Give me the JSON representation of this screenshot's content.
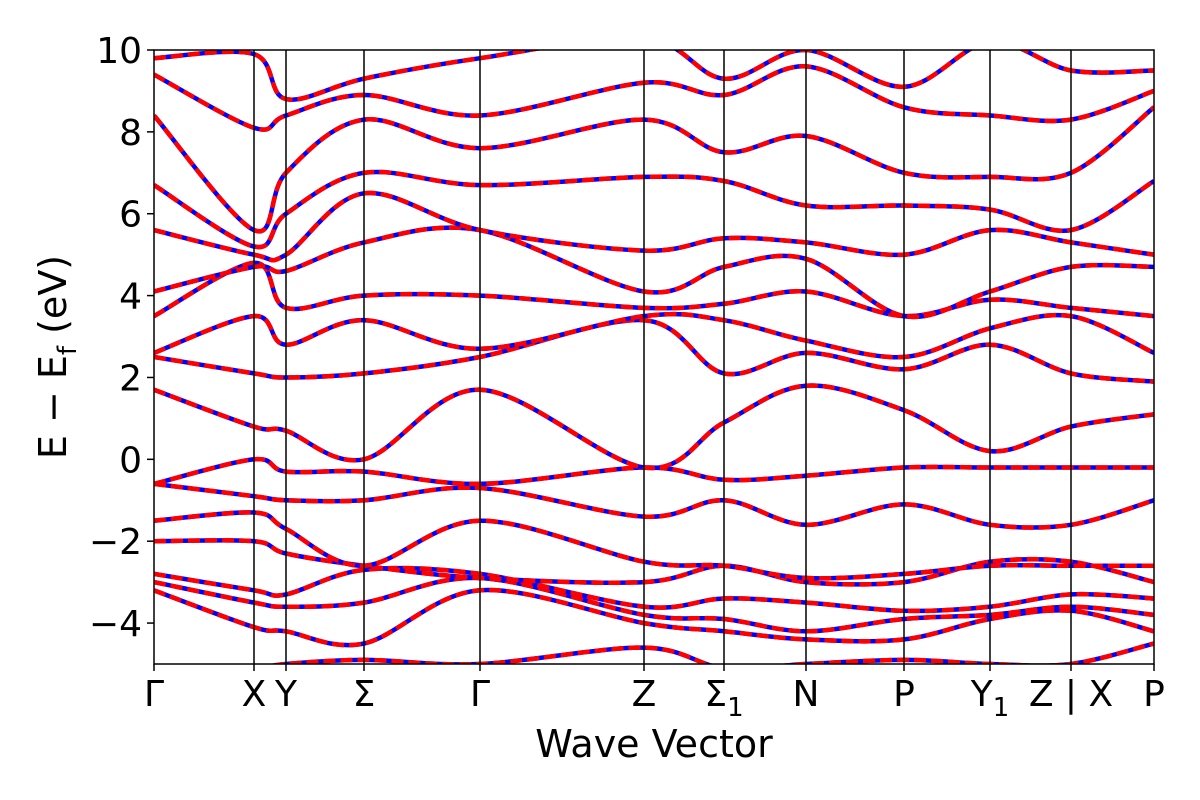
{
  "chart_data": {
    "type": "line",
    "title": "",
    "xlabel": "Wave Vector",
    "ylabel": "E − E_f (eV)",
    "ylabel_parts": {
      "main": "E − E",
      "sub": "f",
      "tail": " (eV)"
    },
    "ylim": [
      -5,
      10
    ],
    "xlim": [
      0,
      1
    ],
    "yticks": [
      -4,
      -2,
      0,
      2,
      4,
      6,
      8,
      10
    ],
    "ytick_labels": [
      "−4",
      "−2",
      "0",
      "2",
      "4",
      "6",
      "8",
      "10"
    ],
    "grid": false,
    "legend": "none",
    "kpoints": [
      {
        "x": 0.0,
        "label": "Γ"
      },
      {
        "x": 0.1,
        "label": "X"
      },
      {
        "x": 0.132,
        "label": "Y"
      },
      {
        "x": 0.21,
        "label": "Σ"
      },
      {
        "x": 0.326,
        "label": "Γ"
      },
      {
        "x": 0.49,
        "label": "Z"
      },
      {
        "x": 0.57,
        "label": "Σ",
        "sub": "1"
      },
      {
        "x": 0.652,
        "label": "N"
      },
      {
        "x": 0.75,
        "label": "P"
      },
      {
        "x": 0.836,
        "label": "Y",
        "sub": "1"
      },
      {
        "x": 0.917,
        "label": "Z | X"
      },
      {
        "x": 1.0,
        "label": "P"
      }
    ],
    "colors": {
      "series_a": "#0000ff",
      "series_b": "#ff0000"
    },
    "series": [
      {
        "style": "dashed-overlay",
        "bands": [
          [
            [
              0,
              -5.2
            ],
            [
              0.1,
              -5.1
            ],
            [
              0.132,
              -5.0
            ],
            [
              0.21,
              -4.9
            ],
            [
              0.326,
              -5.0
            ],
            [
              0.49,
              -4.6
            ],
            [
              0.57,
              -5.1
            ],
            [
              0.652,
              -5.0
            ],
            [
              0.75,
              -4.9
            ],
            [
              0.836,
              -5.0
            ],
            [
              0.917,
              -5.0
            ],
            [
              1.0,
              -4.5
            ]
          ],
          [
            [
              0,
              -3.2
            ],
            [
              0.1,
              -4.1
            ],
            [
              0.132,
              -4.2
            ],
            [
              0.21,
              -4.5
            ],
            [
              0.326,
              -3.2
            ],
            [
              0.49,
              -4.0
            ],
            [
              0.57,
              -4.2
            ],
            [
              0.652,
              -4.4
            ],
            [
              0.75,
              -4.4
            ],
            [
              0.836,
              -3.9
            ],
            [
              0.917,
              -3.7
            ],
            [
              1.0,
              -4.2
            ]
          ],
          [
            [
              0,
              -3.0
            ],
            [
              0.1,
              -3.5
            ],
            [
              0.132,
              -3.6
            ],
            [
              0.21,
              -3.5
            ],
            [
              0.326,
              -2.9
            ],
            [
              0.49,
              -3.8
            ],
            [
              0.57,
              -3.9
            ],
            [
              0.652,
              -4.2
            ],
            [
              0.75,
              -3.9
            ],
            [
              0.836,
              -3.8
            ],
            [
              0.917,
              -3.6
            ],
            [
              1.0,
              -3.8
            ]
          ],
          [
            [
              0,
              -2.8
            ],
            [
              0.1,
              -3.2
            ],
            [
              0.132,
              -3.3
            ],
            [
              0.21,
              -2.7
            ],
            [
              0.326,
              -2.8
            ],
            [
              0.49,
              -3.6
            ],
            [
              0.57,
              -3.4
            ],
            [
              0.652,
              -3.5
            ],
            [
              0.75,
              -3.7
            ],
            [
              0.836,
              -3.6
            ],
            [
              0.917,
              -3.3
            ],
            [
              1.0,
              -3.4
            ]
          ],
          [
            [
              0,
              -2.0
            ],
            [
              0.1,
              -2.0
            ],
            [
              0.132,
              -2.3
            ],
            [
              0.21,
              -2.6
            ],
            [
              0.326,
              -2.9
            ],
            [
              0.49,
              -3.0
            ],
            [
              0.57,
              -2.6
            ],
            [
              0.652,
              -3.0
            ],
            [
              0.75,
              -3.0
            ],
            [
              0.836,
              -2.5
            ],
            [
              0.917,
              -2.5
            ],
            [
              1.0,
              -3.0
            ]
          ],
          [
            [
              0,
              -1.5
            ],
            [
              0.1,
              -1.3
            ],
            [
              0.132,
              -1.7
            ],
            [
              0.21,
              -2.6
            ],
            [
              0.326,
              -1.5
            ],
            [
              0.49,
              -2.5
            ],
            [
              0.57,
              -2.6
            ],
            [
              0.652,
              -2.9
            ],
            [
              0.75,
              -2.8
            ],
            [
              0.836,
              -2.6
            ],
            [
              0.917,
              -2.6
            ],
            [
              1.0,
              -2.6
            ]
          ],
          [
            [
              0,
              -0.6
            ],
            [
              0.1,
              -0.9
            ],
            [
              0.132,
              -1.0
            ],
            [
              0.21,
              -1.0
            ],
            [
              0.326,
              -0.7
            ],
            [
              0.49,
              -1.4
            ],
            [
              0.57,
              -1.0
            ],
            [
              0.652,
              -1.6
            ],
            [
              0.75,
              -1.1
            ],
            [
              0.836,
              -1.6
            ],
            [
              0.917,
              -1.6
            ],
            [
              1.0,
              -1.0
            ]
          ],
          [
            [
              0,
              -0.6
            ],
            [
              0.1,
              0.0
            ],
            [
              0.132,
              -0.3
            ],
            [
              0.21,
              -0.3
            ],
            [
              0.326,
              -0.6
            ],
            [
              0.49,
              -0.2
            ],
            [
              0.57,
              -0.5
            ],
            [
              0.652,
              -0.4
            ],
            [
              0.75,
              -0.2
            ],
            [
              0.836,
              -0.2
            ],
            [
              0.917,
              -0.2
            ],
            [
              1.0,
              -0.2
            ]
          ],
          [
            [
              0,
              1.7
            ],
            [
              0.1,
              0.8
            ],
            [
              0.132,
              0.7
            ],
            [
              0.21,
              0.0
            ],
            [
              0.326,
              1.7
            ],
            [
              0.49,
              -0.2
            ],
            [
              0.57,
              0.9
            ],
            [
              0.652,
              1.8
            ],
            [
              0.75,
              1.2
            ],
            [
              0.836,
              0.2
            ],
            [
              0.917,
              0.8
            ],
            [
              1.0,
              1.1
            ]
          ],
          [
            [
              0,
              2.5
            ],
            [
              0.1,
              2.1
            ],
            [
              0.132,
              2.0
            ],
            [
              0.21,
              2.1
            ],
            [
              0.326,
              2.5
            ],
            [
              0.49,
              3.4
            ],
            [
              0.57,
              2.1
            ],
            [
              0.652,
              2.6
            ],
            [
              0.75,
              2.2
            ],
            [
              0.836,
              2.8
            ],
            [
              0.917,
              2.1
            ],
            [
              1.0,
              1.9
            ]
          ],
          [
            [
              0,
              2.6
            ],
            [
              0.1,
              3.5
            ],
            [
              0.132,
              2.8
            ],
            [
              0.21,
              3.4
            ],
            [
              0.326,
              2.7
            ],
            [
              0.49,
              3.5
            ],
            [
              0.57,
              3.4
            ],
            [
              0.652,
              2.9
            ],
            [
              0.75,
              2.5
            ],
            [
              0.836,
              3.2
            ],
            [
              0.917,
              3.5
            ],
            [
              1.0,
              2.6
            ]
          ],
          [
            [
              0,
              3.5
            ],
            [
              0.1,
              4.8
            ],
            [
              0.132,
              3.7
            ],
            [
              0.21,
              4.0
            ],
            [
              0.326,
              4.0
            ],
            [
              0.49,
              3.7
            ],
            [
              0.57,
              3.8
            ],
            [
              0.652,
              4.1
            ],
            [
              0.75,
              3.5
            ],
            [
              0.836,
              3.9
            ],
            [
              0.917,
              3.7
            ],
            [
              1.0,
              3.5
            ]
          ],
          [
            [
              0,
              4.1
            ],
            [
              0.1,
              4.7
            ],
            [
              0.132,
              4.6
            ],
            [
              0.21,
              5.3
            ],
            [
              0.326,
              5.6
            ],
            [
              0.49,
              4.1
            ],
            [
              0.57,
              4.7
            ],
            [
              0.652,
              4.9
            ],
            [
              0.75,
              3.5
            ],
            [
              0.836,
              4.1
            ],
            [
              0.917,
              4.7
            ],
            [
              1.0,
              4.7
            ]
          ],
          [
            [
              0,
              5.6
            ],
            [
              0.1,
              5.0
            ],
            [
              0.132,
              5.0
            ],
            [
              0.21,
              6.5
            ],
            [
              0.326,
              5.6
            ],
            [
              0.49,
              5.1
            ],
            [
              0.57,
              5.4
            ],
            [
              0.652,
              5.3
            ],
            [
              0.75,
              5.0
            ],
            [
              0.836,
              5.6
            ],
            [
              0.917,
              5.3
            ],
            [
              1.0,
              5.0
            ]
          ],
          [
            [
              0,
              6.7
            ],
            [
              0.1,
              5.2
            ],
            [
              0.132,
              6.0
            ],
            [
              0.21,
              7.0
            ],
            [
              0.326,
              6.7
            ],
            [
              0.49,
              6.9
            ],
            [
              0.57,
              6.8
            ],
            [
              0.652,
              6.2
            ],
            [
              0.75,
              6.2
            ],
            [
              0.836,
              6.1
            ],
            [
              0.917,
              5.6
            ],
            [
              1.0,
              6.8
            ]
          ],
          [
            [
              0,
              8.4
            ],
            [
              0.1,
              5.6
            ],
            [
              0.132,
              7.0
            ],
            [
              0.21,
              8.3
            ],
            [
              0.326,
              7.6
            ],
            [
              0.49,
              8.3
            ],
            [
              0.57,
              7.5
            ],
            [
              0.652,
              7.9
            ],
            [
              0.75,
              7.0
            ],
            [
              0.836,
              6.9
            ],
            [
              0.917,
              7.0
            ],
            [
              1.0,
              8.6
            ]
          ],
          [
            [
              0,
              9.4
            ],
            [
              0.1,
              8.1
            ],
            [
              0.132,
              8.4
            ],
            [
              0.21,
              8.9
            ],
            [
              0.326,
              8.4
            ],
            [
              0.49,
              9.2
            ],
            [
              0.57,
              8.9
            ],
            [
              0.652,
              9.6
            ],
            [
              0.75,
              8.6
            ],
            [
              0.836,
              8.4
            ],
            [
              0.917,
              8.3
            ],
            [
              1.0,
              9.0
            ]
          ],
          [
            [
              0,
              9.8
            ],
            [
              0.1,
              9.9
            ],
            [
              0.132,
              8.8
            ],
            [
              0.21,
              9.3
            ],
            [
              0.326,
              9.8
            ],
            [
              0.49,
              10.3
            ],
            [
              0.57,
              9.3
            ],
            [
              0.652,
              10.0
            ],
            [
              0.75,
              9.1
            ],
            [
              0.836,
              10.2
            ],
            [
              0.917,
              9.5
            ],
            [
              1.0,
              9.5
            ]
          ]
        ]
      }
    ]
  }
}
